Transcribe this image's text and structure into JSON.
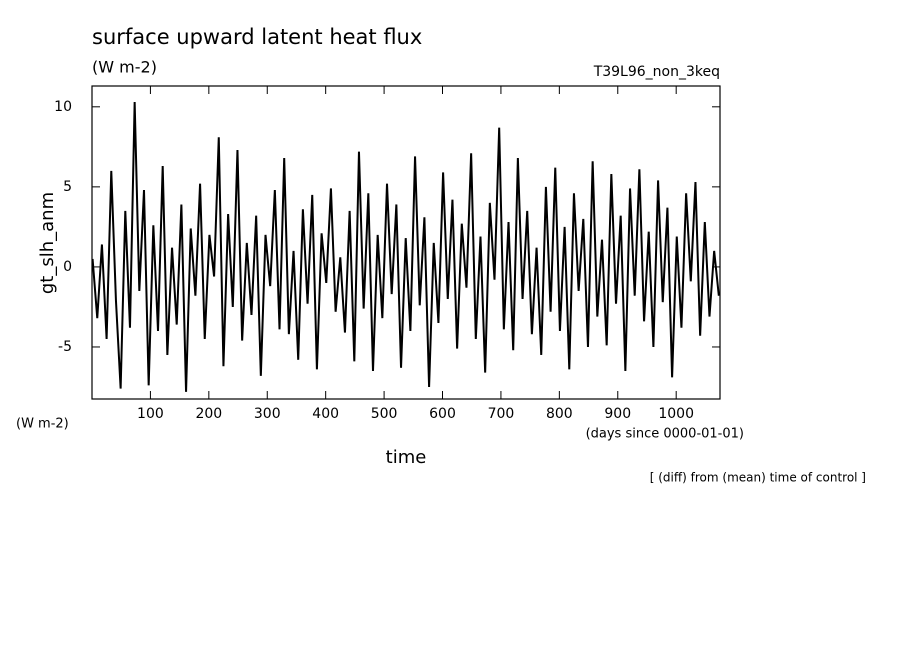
{
  "chart_data": {
    "type": "line",
    "title": "surface upward latent heat flux",
    "subtitle": "(W m-2)",
    "run_label": "T39L96_non_3keq",
    "ylabel": "gt_slh_anm",
    "yunits": "(W m-2)",
    "xunits": "(days since 0000-01-01)",
    "xlabel": "time",
    "note": "[ (diff) from (mean) time of control ]",
    "color": "#000000",
    "x": [
      1,
      9,
      17,
      25,
      33,
      41,
      49,
      57,
      65,
      73,
      81,
      89,
      97,
      105,
      113,
      121,
      129,
      137,
      145,
      153,
      161,
      169,
      177,
      185,
      193,
      201,
      209,
      217,
      225,
      233,
      241,
      249,
      257,
      265,
      273,
      281,
      289,
      297,
      305,
      313,
      321,
      329,
      337,
      345,
      353,
      361,
      369,
      377,
      385,
      393,
      401,
      409,
      417,
      425,
      433,
      441,
      449,
      457,
      465,
      473,
      481,
      489,
      497,
      505,
      513,
      521,
      529,
      537,
      545,
      553,
      561,
      569,
      577,
      585,
      593,
      601,
      609,
      617,
      625,
      633,
      641,
      649,
      657,
      665,
      673,
      681,
      689,
      697,
      705,
      713,
      721,
      729,
      737,
      745,
      753,
      761,
      769,
      777,
      785,
      793,
      801,
      809,
      817,
      825,
      833,
      841,
      849,
      857,
      865,
      873,
      881,
      889,
      897,
      905,
      913,
      921,
      929,
      937,
      945,
      953,
      961,
      969,
      977,
      985,
      993,
      1001,
      1009,
      1017,
      1025,
      1033,
      1041,
      1049,
      1057,
      1065,
      1073
    ],
    "values": [
      0.5,
      -3.2,
      1.4,
      -4.5,
      6.0,
      -2.1,
      -7.6,
      3.5,
      -3.8,
      10.3,
      -1.5,
      4.8,
      -7.4,
      2.6,
      -4.0,
      6.3,
      -5.5,
      1.2,
      -3.6,
      3.9,
      -7.8,
      2.4,
      -1.8,
      5.2,
      -4.5,
      2.0,
      -0.6,
      8.1,
      -6.2,
      3.3,
      -2.5,
      7.3,
      -4.6,
      1.5,
      -3.0,
      3.2,
      -6.8,
      2.0,
      -1.2,
      4.8,
      -3.9,
      6.8,
      -4.2,
      1.0,
      -5.8,
      3.6,
      -2.3,
      4.5,
      -6.4,
      2.1,
      -1.0,
      4.9,
      -2.8,
      0.6,
      -4.1,
      3.5,
      -5.9,
      7.2,
      -2.6,
      4.6,
      -6.5,
      2.0,
      -3.2,
      5.2,
      -1.7,
      3.9,
      -6.3,
      1.8,
      -4.0,
      6.9,
      -2.4,
      3.1,
      -7.5,
      1.5,
      -3.5,
      5.9,
      -2.0,
      4.2,
      -5.1,
      2.7,
      -1.3,
      7.1,
      -4.5,
      1.9,
      -6.6,
      4.0,
      -0.8,
      8.7,
      -3.9,
      2.8,
      -5.2,
      6.8,
      -2.0,
      3.5,
      -4.2,
      1.2,
      -5.5,
      5.0,
      -2.8,
      6.2,
      -4.0,
      2.5,
      -6.4,
      4.6,
      -1.5,
      3.0,
      -5.0,
      6.6,
      -3.1,
      1.7,
      -4.9,
      5.8,
      -2.3,
      3.2,
      -6.5,
      4.9,
      -1.8,
      6.1,
      -3.4,
      2.2,
      -5.0,
      5.4,
      -2.2,
      3.7,
      -6.9,
      1.9,
      -3.8,
      4.6,
      -0.9,
      5.3,
      -4.3,
      2.8,
      -3.1,
      1.0,
      -1.8
    ],
    "xlim": [
      0,
      1075
    ],
    "xticks": [
      100,
      200,
      300,
      400,
      500,
      600,
      700,
      800,
      900,
      1000
    ],
    "ylim": [
      -8.25,
      11.3
    ],
    "yticks": [
      -5,
      0,
      5,
      10
    ]
  }
}
